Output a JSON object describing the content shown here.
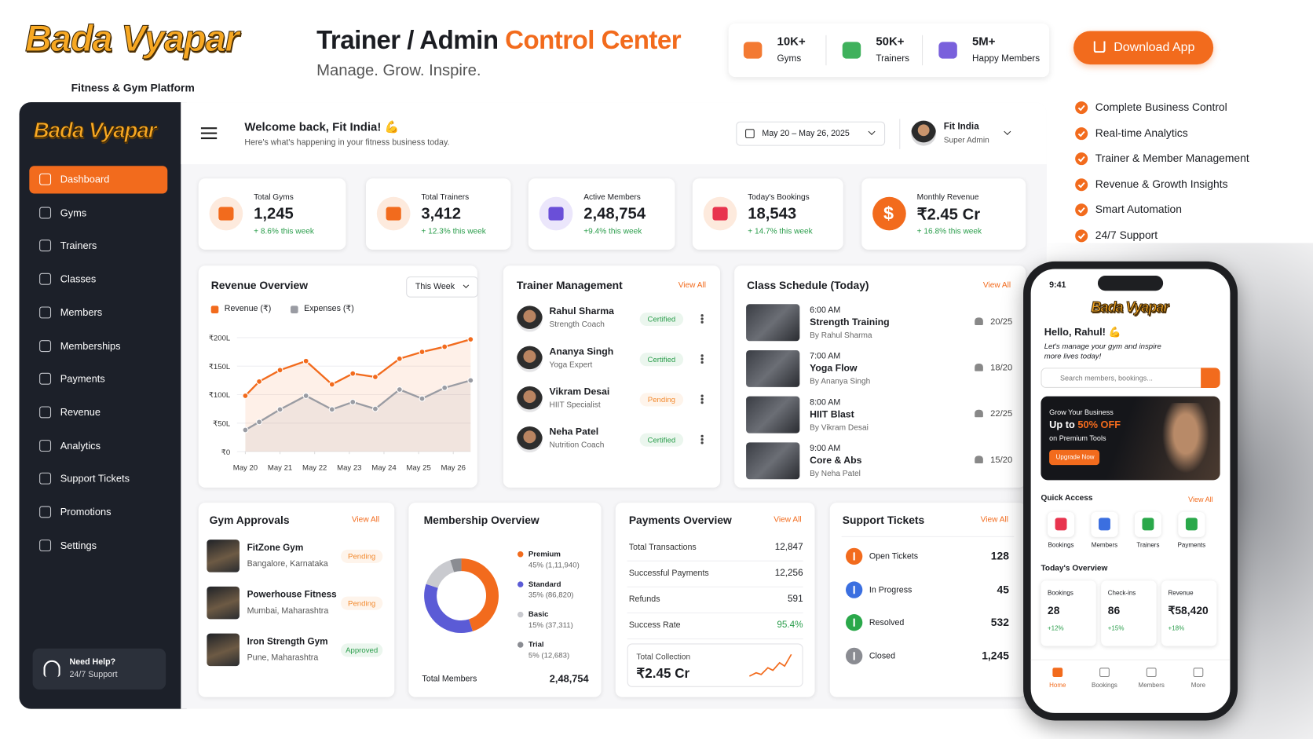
{
  "header": {
    "logo": "Bada Vyapar",
    "tagline": "Fitness & Gym Platform",
    "title": "Trainer / Admin",
    "title_highlight": "Control Center",
    "subtitle": "Manage. Grow. Inspire."
  },
  "stats": [
    {
      "value": "10K+",
      "label": "Gyms",
      "color": "#f26b1d"
    },
    {
      "value": "50K+",
      "label": "Trainers",
      "color": "#2aa84a"
    },
    {
      "value": "5M+",
      "label": "Happy Members",
      "color": "#6a4fd8"
    }
  ],
  "download_button": "Download App",
  "features": [
    "Complete Business Control",
    "Real-time Analytics",
    "Trainer & Member Management",
    "Revenue & Growth Insights",
    "Smart Automation",
    "24/7 Support"
  ],
  "sidebar": {
    "logo": "Bada Vyapar",
    "nav": [
      "Dashboard",
      "Gyms",
      "Trainers",
      "Classes",
      "Members",
      "Memberships",
      "Payments",
      "Revenue",
      "Analytics",
      "Support Tickets",
      "Promotions",
      "Settings"
    ],
    "help_title": "Need Help?",
    "help_subtitle": "24/7 Support"
  },
  "topbar": {
    "welcome": "Welcome back, Fit India! 💪",
    "subtitle": "Here's what's happening in your fitness business today.",
    "date_range": "May 20 – May 26, 2025",
    "user_name": "Fit India",
    "user_role": "Super Admin"
  },
  "kpis": [
    {
      "label": "Total Gyms",
      "value": "1,245",
      "change": "+ 8.6% this week"
    },
    {
      "label": "Total Trainers",
      "value": "3,412",
      "change": "+ 12.3% this week"
    },
    {
      "label": "Active Members",
      "value": "2,48,754",
      "change": "+9.4% this week"
    },
    {
      "label": "Today's Bookings",
      "value": "18,543",
      "change": "+ 14.7% this week"
    },
    {
      "label": "Monthly Revenue",
      "value": "₹2.45 Cr",
      "change": "+ 16.8% this week",
      "icon": "$"
    }
  ],
  "chart_data": [
    {
      "type": "line",
      "title": "Revenue Overview",
      "period": "This Week",
      "x": [
        0,
        0.4,
        1,
        1.75,
        2.5,
        3.1,
        3.75,
        4.45,
        5.1,
        5.75,
        6.5
      ],
      "xlim": [
        0,
        6.5
      ],
      "xticks": [
        {
          "value": 0,
          "label": "May 20"
        },
        {
          "value": 1,
          "label": "May 21"
        },
        {
          "value": 2,
          "label": "May 22"
        },
        {
          "value": 3,
          "label": "May 23"
        },
        {
          "value": 4,
          "label": "May 24"
        },
        {
          "value": 5,
          "label": "May 25"
        },
        {
          "value": 6,
          "label": "May 26"
        }
      ],
      "ylim": [
        0,
        200
      ],
      "yticks": [
        {
          "value": 0,
          "label": "₹0"
        },
        {
          "value": 50,
          "label": "₹50L"
        },
        {
          "value": 100,
          "label": "₹100L"
        },
        {
          "value": 150,
          "label": "₹150L"
        },
        {
          "value": 200,
          "label": "₹200L"
        }
      ],
      "grid": true,
      "series": [
        {
          "name": "Revenue (₹)",
          "color": "#f26b1d",
          "values": [
            98,
            123,
            143,
            159,
            118,
            137,
            131,
            163,
            175,
            184,
            197
          ]
        },
        {
          "name": "Expenses (₹)",
          "color": "#9a9ca3",
          "values": [
            38,
            52,
            74,
            98,
            74,
            87,
            75,
            109,
            93,
            112,
            125
          ]
        }
      ]
    },
    {
      "type": "pie",
      "title": "Membership Overview",
      "categories": [
        "Premium",
        "Standard",
        "Basic",
        "Trial"
      ],
      "values": [
        45,
        35,
        15,
        5
      ],
      "value_labels": [
        "45% (1,11,940)",
        "35% (86,820)",
        "15% (37,311)",
        "5% (12,683)"
      ],
      "colors": [
        "#f26b1d",
        "#5b5bd6",
        "#c9cacf",
        "#8a8c92"
      ],
      "total_label": "Total Members",
      "total": "2,48,754"
    }
  ],
  "trainer_management": {
    "title": "Trainer Management",
    "view_all": "View All",
    "trainers": [
      {
        "name": "Rahul Sharma",
        "role": "Strength Coach",
        "status": "Certified",
        "status_color": "#2a9d4b"
      },
      {
        "name": "Ananya Singh",
        "role": "Yoga Expert",
        "status": "Certified",
        "status_color": "#2a9d4b"
      },
      {
        "name": "Vikram Desai",
        "role": "HIIT Specialist",
        "status": "Pending",
        "status_color": "#f28a2e"
      },
      {
        "name": "Neha Patel",
        "role": "Nutrition Coach",
        "status": "Certified",
        "status_color": "#2a9d4b"
      }
    ]
  },
  "class_schedule": {
    "title": "Class Schedule (Today)",
    "view_all": "View All",
    "classes": [
      {
        "time": "6:00 AM",
        "name": "Strength Training",
        "by": "By Rahul Sharma",
        "capacity": "20/25"
      },
      {
        "time": "7:00 AM",
        "name": "Yoga Flow",
        "by": "By Ananya Singh",
        "capacity": "18/20"
      },
      {
        "time": "8:00 AM",
        "name": "HIIT Blast",
        "by": "By Vikram Desai",
        "capacity": "22/25"
      },
      {
        "time": "9:00 AM",
        "name": "Core & Abs",
        "by": "By Neha Patel",
        "capacity": "15/20"
      }
    ]
  },
  "gym_approvals": {
    "title": "Gym Approvals",
    "view_all": "View All",
    "gyms": [
      {
        "name": "FitZone Gym",
        "location": "Bangalore, Karnataka",
        "status": "Pending",
        "status_color": "#f28a2e"
      },
      {
        "name": "Powerhouse Fitness",
        "location": "Mumbai, Maharashtra",
        "status": "Pending",
        "status_color": "#f28a2e"
      },
      {
        "name": "Iron Strength Gym",
        "location": "Pune, Maharashtra",
        "status": "Approved",
        "status_color": "#2a9d4b"
      }
    ]
  },
  "payments_overview": {
    "title": "Payments Overview",
    "view_all": "View All",
    "rows": [
      {
        "label": "Total Transactions",
        "value": "12,847"
      },
      {
        "label": "Successful Payments",
        "value": "12,256"
      },
      {
        "label": "Refunds",
        "value": "591"
      },
      {
        "label": "Success Rate",
        "value": "95.4%",
        "color": "#2a9d4b"
      }
    ],
    "total_label": "Total Collection",
    "total": "₹2.45 Cr"
  },
  "support_tickets": {
    "title": "Support Tickets",
    "view_all": "View All",
    "rows": [
      {
        "label": "Open Tickets",
        "value": "128",
        "color": "#f26b1d"
      },
      {
        "label": "In Progress",
        "value": "45",
        "color": "#3b6fe0"
      },
      {
        "label": "Resolved",
        "value": "532",
        "color": "#2aa84a"
      },
      {
        "label": "Closed",
        "value": "1,245",
        "color": "#8a8c92"
      }
    ]
  },
  "phone": {
    "time": "9:41",
    "logo": "Bada Vyapar",
    "greeting": "Hello, Rahul! 💪",
    "message": "Let's manage your gym and inspire more lives today!",
    "search": "Search members, bookings...",
    "promo_title": "Grow Your Business",
    "promo_pre": "Up to",
    "promo_highlight": "50% OFF",
    "promo_sub": "on Premium Tools",
    "promo_button": "Upgrade Now",
    "quick_access": "Quick Access",
    "view_all": "View All",
    "quick_items": [
      "Bookings",
      "Members",
      "Trainers",
      "Payments"
    ],
    "overview_title": "Today's Overview",
    "overview": [
      {
        "label": "Bookings",
        "value": "28",
        "change": "+12%"
      },
      {
        "label": "Check-ins",
        "value": "86",
        "change": "+15%"
      },
      {
        "label": "Revenue",
        "value": "₹58,420",
        "change": "+18%"
      }
    ],
    "nav": [
      "Home",
      "Bookings",
      "Members",
      "More"
    ]
  }
}
